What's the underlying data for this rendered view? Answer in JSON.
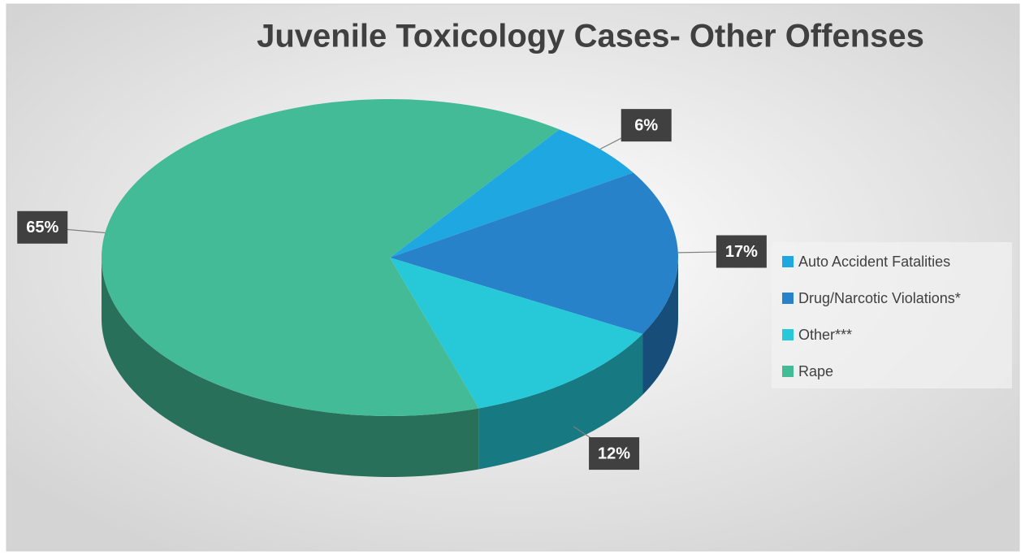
{
  "chart_data": {
    "type": "pie",
    "title": "Juvenile Toxicology Cases- Other Offenses",
    "categories": [
      "Auto Accident Fatalities",
      "Drug/Narcotic Violations*",
      "Other***",
      "Rape"
    ],
    "values": [
      6,
      17,
      12,
      65
    ],
    "value_labels": [
      "6%",
      "17%",
      "12%",
      "65%"
    ],
    "colors": [
      "#1fa7e1",
      "#2782c9",
      "#27c9d9",
      "#44bb97"
    ],
    "legend": "right"
  }
}
